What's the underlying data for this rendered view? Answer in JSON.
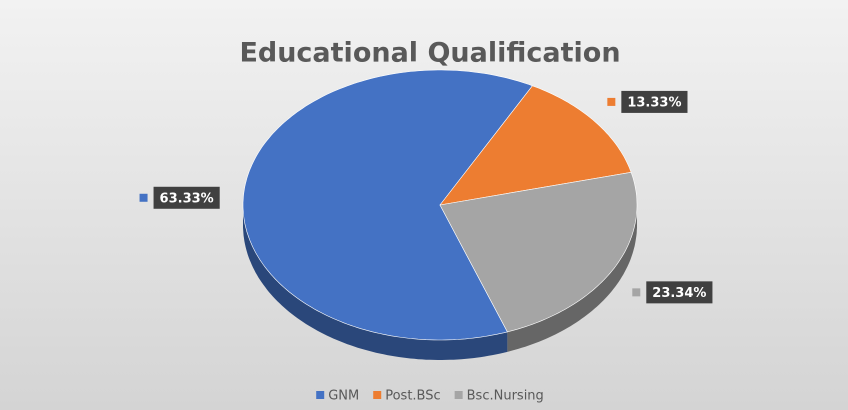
{
  "chart_data": {
    "type": "pie",
    "title": "Educational Qualification",
    "categories": [
      "GNM",
      "Post.BSc",
      "Bsc.Nursing"
    ],
    "values": [
      63.33,
      13.33,
      23.34
    ],
    "value_labels": [
      "63.33%",
      "13.33%",
      "23.34%"
    ],
    "colors": [
      "#4472c4",
      "#ed7d31",
      "#a5a5a5"
    ],
    "legend": "bottom"
  }
}
